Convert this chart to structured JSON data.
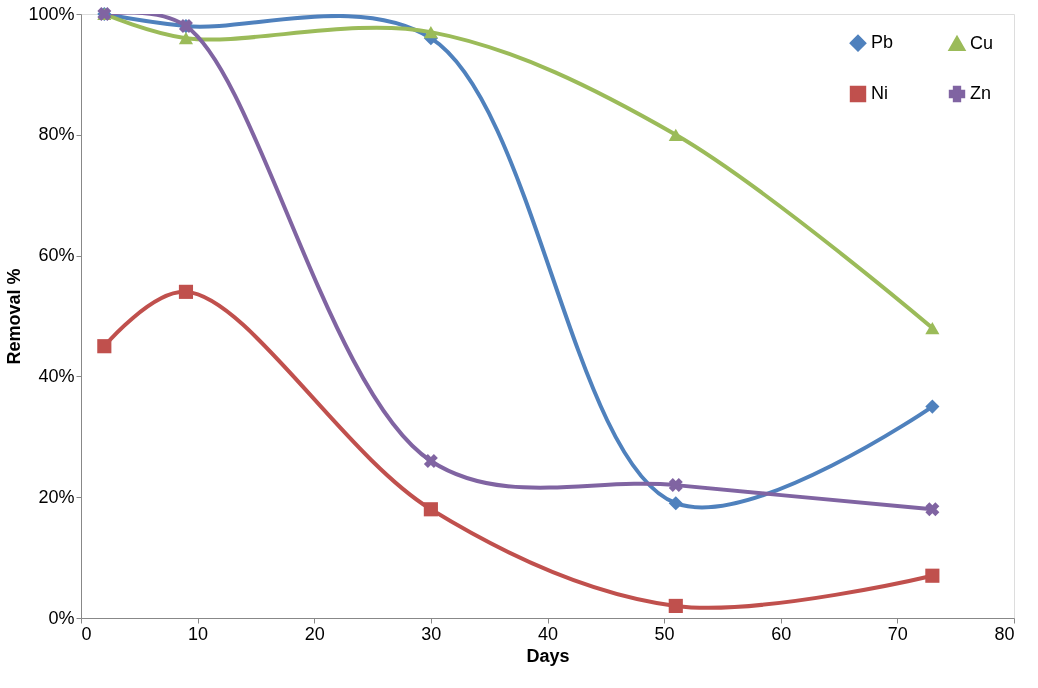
{
  "chart_data": {
    "type": "line",
    "xlabel": "Days",
    "ylabel": "Removal %",
    "x": [
      2,
      9,
      30,
      51,
      73
    ],
    "series": [
      {
        "name": "Pb",
        "color": "#4f81bd",
        "marker": "diamond",
        "values": [
          100,
          98,
          96,
          19,
          35
        ]
      },
      {
        "name": "Ni",
        "color": "#c0504d",
        "marker": "square",
        "values": [
          45,
          54,
          18,
          2,
          7
        ]
      },
      {
        "name": "Cu",
        "color": "#9bbb59",
        "marker": "triangle",
        "values": [
          100,
          96,
          97,
          80,
          48
        ]
      },
      {
        "name": "Zn",
        "color": "#8064a2",
        "marker": "cross",
        "values": [
          100,
          98,
          26,
          22,
          18
        ]
      }
    ],
    "xlim": [
      0,
      80
    ],
    "xticks": [
      0,
      10,
      20,
      30,
      40,
      50,
      60,
      70,
      80
    ],
    "ylim": [
      0,
      100
    ],
    "yticks": [
      {
        "value": 0,
        "label": "0%"
      },
      {
        "value": 20,
        "label": "20%"
      },
      {
        "value": 40,
        "label": "40%"
      },
      {
        "value": 60,
        "label": "60%"
      },
      {
        "value": 80,
        "label": "80%"
      },
      {
        "value": 100,
        "label": "100%"
      }
    ],
    "grid": false,
    "legend": "top right",
    "line_style": "solid"
  }
}
